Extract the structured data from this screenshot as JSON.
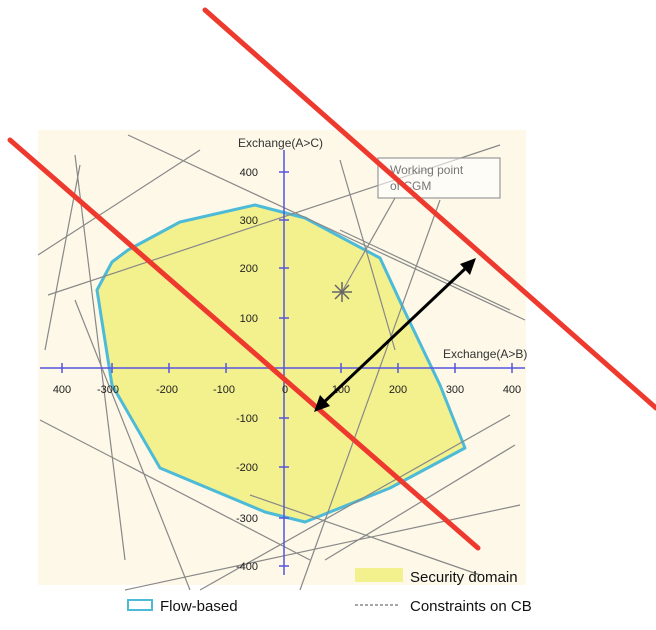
{
  "diagram": {
    "x_axis_label": "Exchange(A>B)",
    "y_axis_label": "Exchange(A>C)",
    "x_ticks": [
      "400",
      "-300",
      "-200",
      "-100",
      "0",
      "100",
      "200",
      "300",
      "400"
    ],
    "y_ticks": [
      "400",
      "300",
      "200",
      "100",
      "-100",
      "-200",
      "-300",
      "-400"
    ],
    "working_point_label_line1": "Working point",
    "working_point_label_line2": "of CGM",
    "legend": {
      "security_domain": "Security domain",
      "flow_based": "Flow-based",
      "constraints": "Constraints on CB"
    },
    "colors": {
      "plot_background": "#fdf8e8",
      "security_domain_fill": "#f3f08e",
      "flow_based_outline": "#4dbbd8",
      "constraint_lines": "#888888",
      "axes": "#5555dd",
      "red_lines": "#ee3a2e",
      "arrow": "#000000"
    }
  }
}
